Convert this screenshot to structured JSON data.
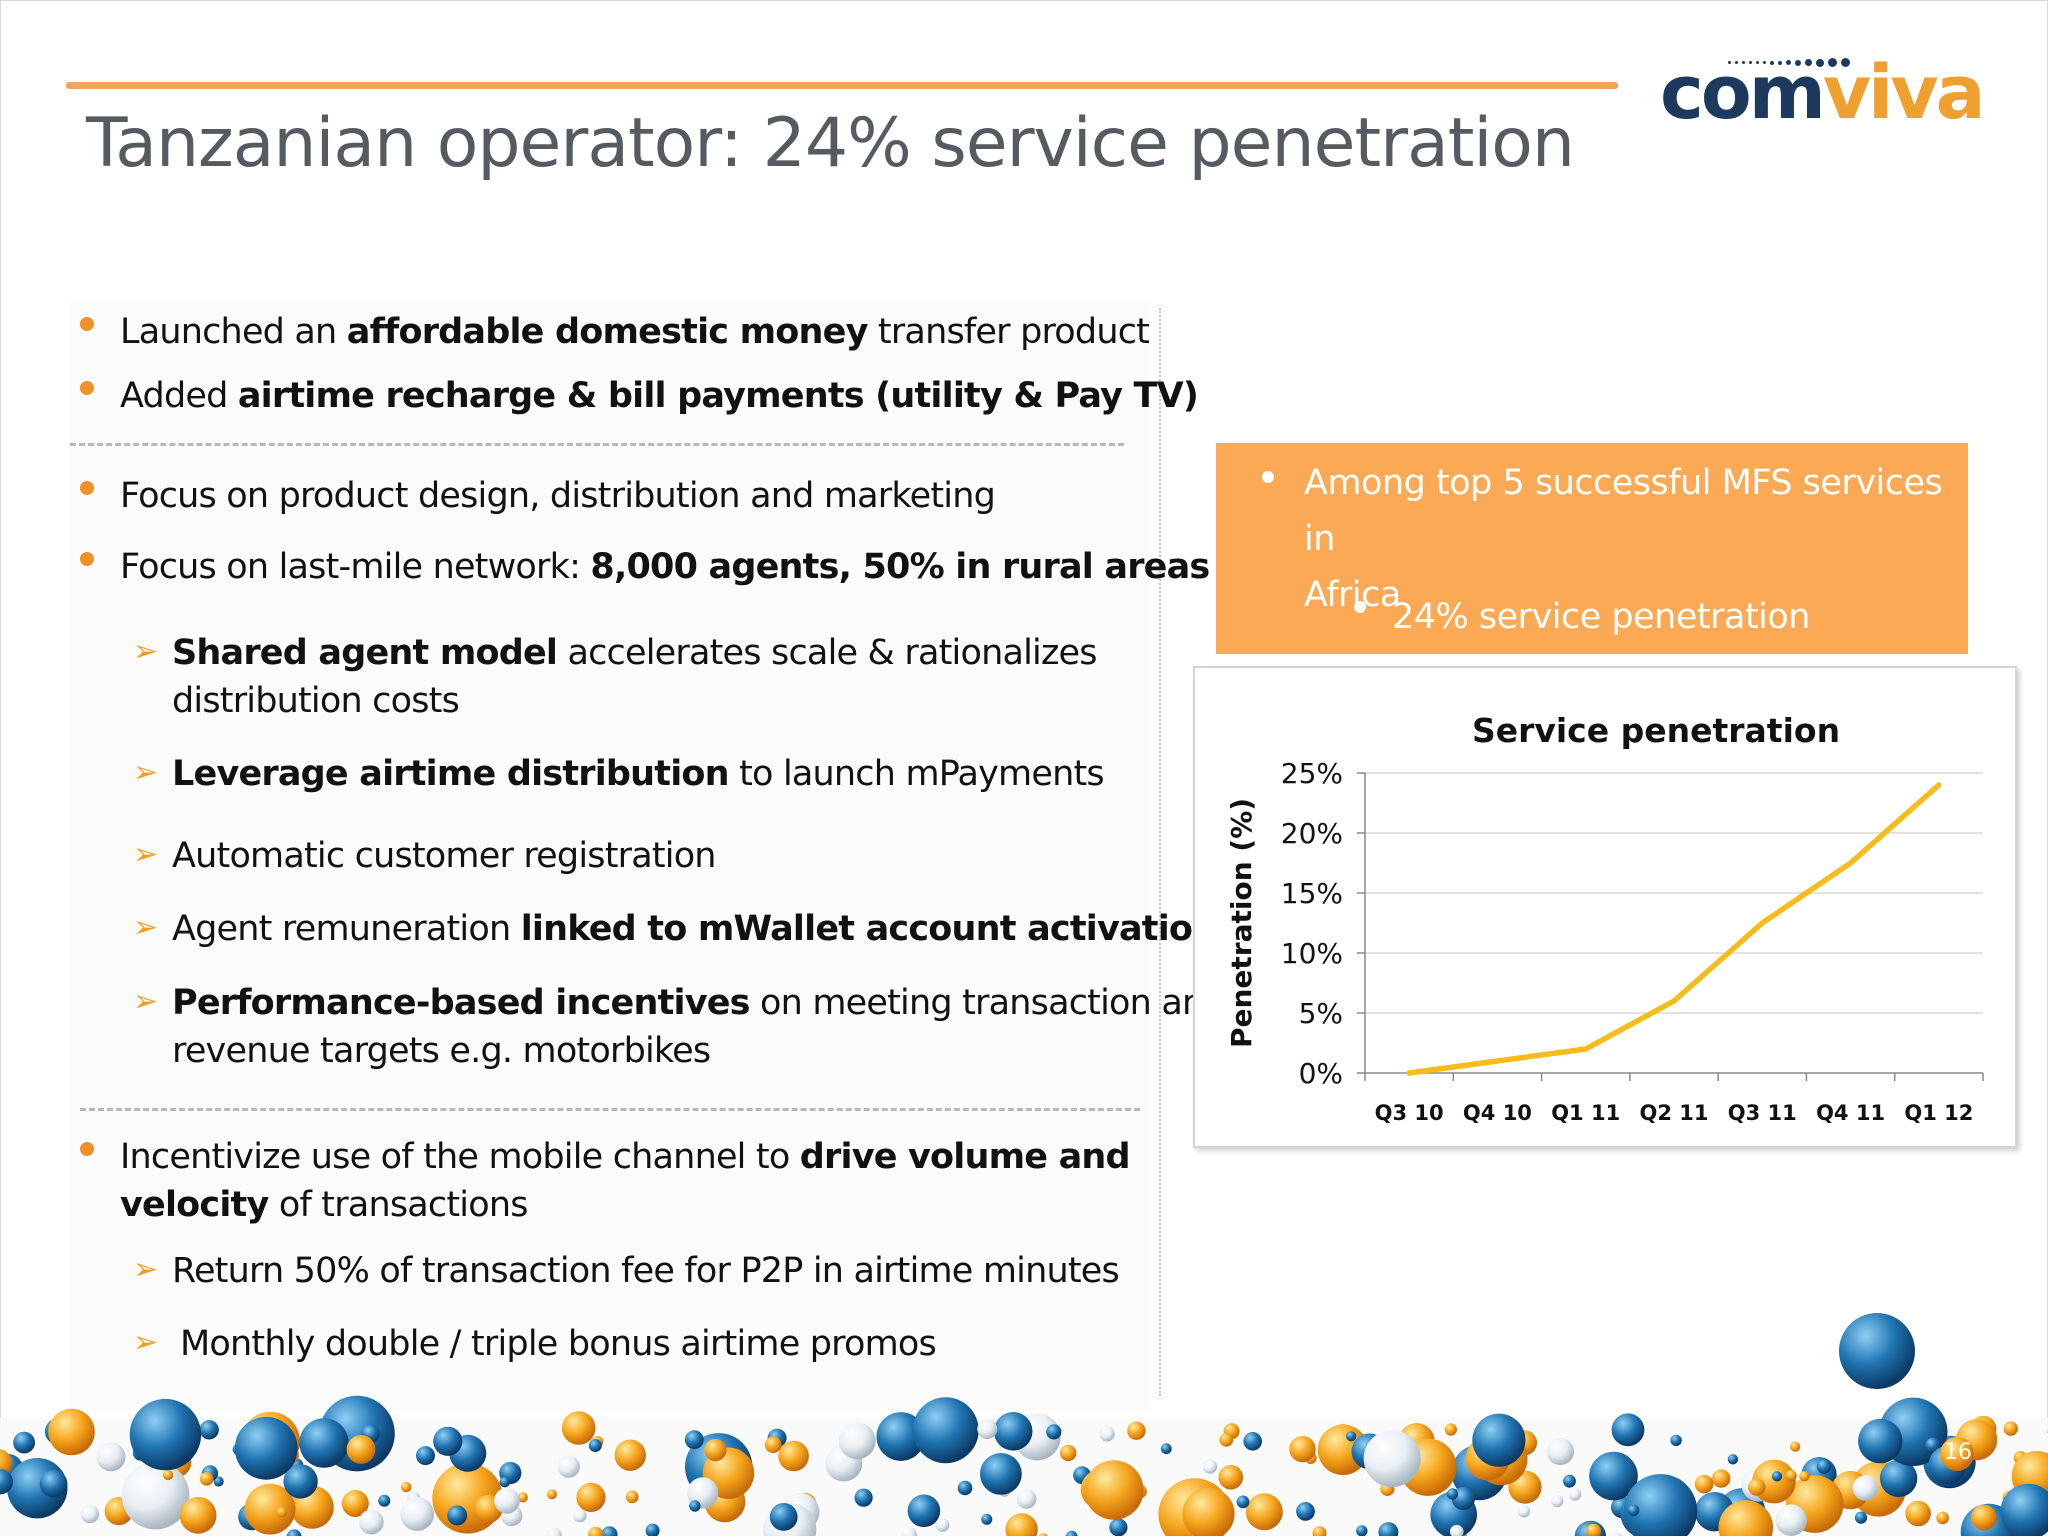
{
  "slide": {
    "title": "Tanzanian operator: 24% service penetration",
    "page_number": "16",
    "logo": {
      "part1": "com",
      "part2": "viva"
    },
    "colors": {
      "accent_orange": "#f0902a",
      "callout_bg": "#fba954",
      "line": "#f5bc1c",
      "title_gray": "#555b60",
      "logo_navy": "#1d3a5e"
    }
  },
  "left": {
    "b1": {
      "pre": "Launched an ",
      "bold": "affordable domestic money",
      "post": " transfer product"
    },
    "b2": {
      "pre": "Added ",
      "bold": "airtime recharge & bill payments (utility & Pay TV)"
    },
    "b3": {
      "text": "Focus on product design, distribution and marketing"
    },
    "b4": {
      "pre": "Focus on last-mile network: ",
      "bold": "8,000 agents, 50% in rural areas"
    },
    "s1": {
      "bold": "Shared agent model",
      "post": " accelerates scale & rationalizes",
      "line2": "distribution costs"
    },
    "s2": {
      "bold": "Leverage airtime distribution",
      "post": " to launch mPayments"
    },
    "s3": {
      "text": "Automatic customer registration"
    },
    "s4": {
      "pre": "Agent remuneration ",
      "bold": "linked to mWallet account activation"
    },
    "s5": {
      "bold": "Performance-based incentives",
      "post": "  on meeting transaction and",
      "line2": "revenue targets  e.g. motorbikes"
    },
    "b5": {
      "pre": "Incentivize use of the  mobile channel to ",
      "bold": "drive volume and",
      "bold2": "velocity",
      "post": " of transactions"
    },
    "s6": {
      "text": "Return 50% of transaction fee for P2P in airtime minutes"
    },
    "s7": {
      "text": "Monthly double / triple bonus airtime promos"
    }
  },
  "callout": {
    "line1": "Among top 5 successful MFS services in",
    "line2": "Africa",
    "sub": "24%  service  penetration"
  },
  "chart_data": {
    "type": "line",
    "title": "Service penetration",
    "ylabel": "Penetration  (%)",
    "xlabel": "",
    "categories": [
      "Q3 10",
      "Q4 10",
      "Q1 11",
      "Q2 11",
      "Q3 11",
      "Q4 11",
      "Q1 12"
    ],
    "series": [
      {
        "values": [
          0,
          1,
          2,
          6,
          12.5,
          17.5,
          24
        ],
        "color": "#f5bc1c"
      }
    ],
    "ylim": [
      0,
      25
    ],
    "yticks": [
      0,
      5,
      10,
      15,
      20,
      25
    ],
    "ytick_labels": [
      "0%",
      "5%",
      "10%",
      "15%",
      "20%",
      "25%"
    ],
    "grid": true,
    "legend": "none"
  }
}
